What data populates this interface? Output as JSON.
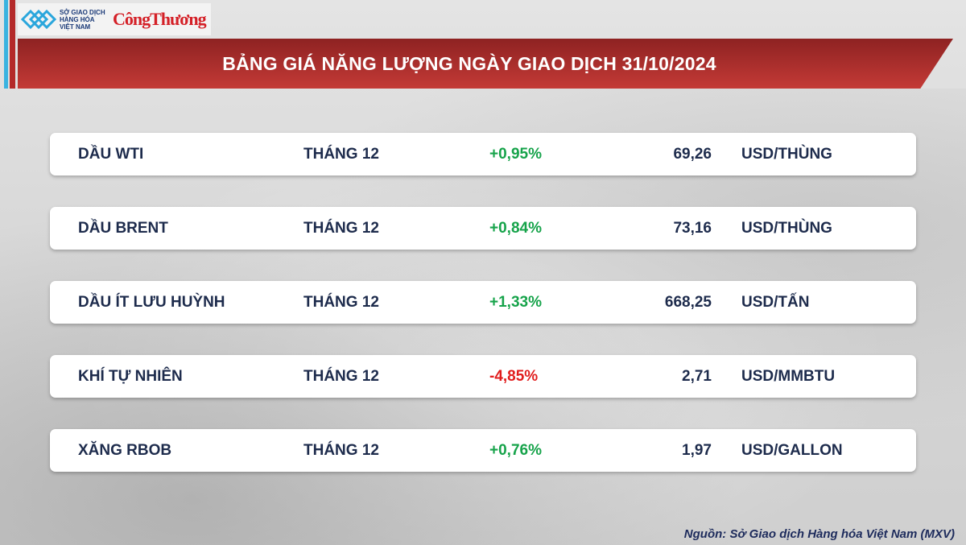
{
  "header": {
    "logo_text": "SỞ GIAO DỊCH HÀNG HÓA VIỆT NAM",
    "brand": "CôngThương",
    "title": "BẢNG GIÁ NĂNG LƯỢNG NGÀY GIAO DỊCH 31/10/2024"
  },
  "colors": {
    "banner": "#b42a2a",
    "up": "#16a34a",
    "down": "#e11d1d",
    "text": "#1d2b4c"
  },
  "rows": [
    {
      "name": "DẦU WTI",
      "month": "THÁNG 12",
      "change": "+0,95%",
      "direction": "up",
      "price": "69,26",
      "unit": "USD/THÙNG"
    },
    {
      "name": "DẦU BRENT",
      "month": "THÁNG 12",
      "change": "+0,84%",
      "direction": "up",
      "price": "73,16",
      "unit": "USD/THÙNG"
    },
    {
      "name": "DẦU ÍT LƯU HUỲNH",
      "month": "THÁNG 12",
      "change": "+1,33%",
      "direction": "up",
      "price": "668,25",
      "unit": "USD/TẤN"
    },
    {
      "name": "KHÍ TỰ NHIÊN",
      "month": "THÁNG 12",
      "change": "-4,85%",
      "direction": "down",
      "price": "2,71",
      "unit": "USD/MMBTU"
    },
    {
      "name": "XĂNG RBOB",
      "month": "THÁNG 12",
      "change": "+0,76%",
      "direction": "up",
      "price": "1,97",
      "unit": "USD/GALLON"
    }
  ],
  "footer": {
    "source": "Nguồn: Sở Giao dịch Hàng hóa Việt Nam (MXV)"
  }
}
